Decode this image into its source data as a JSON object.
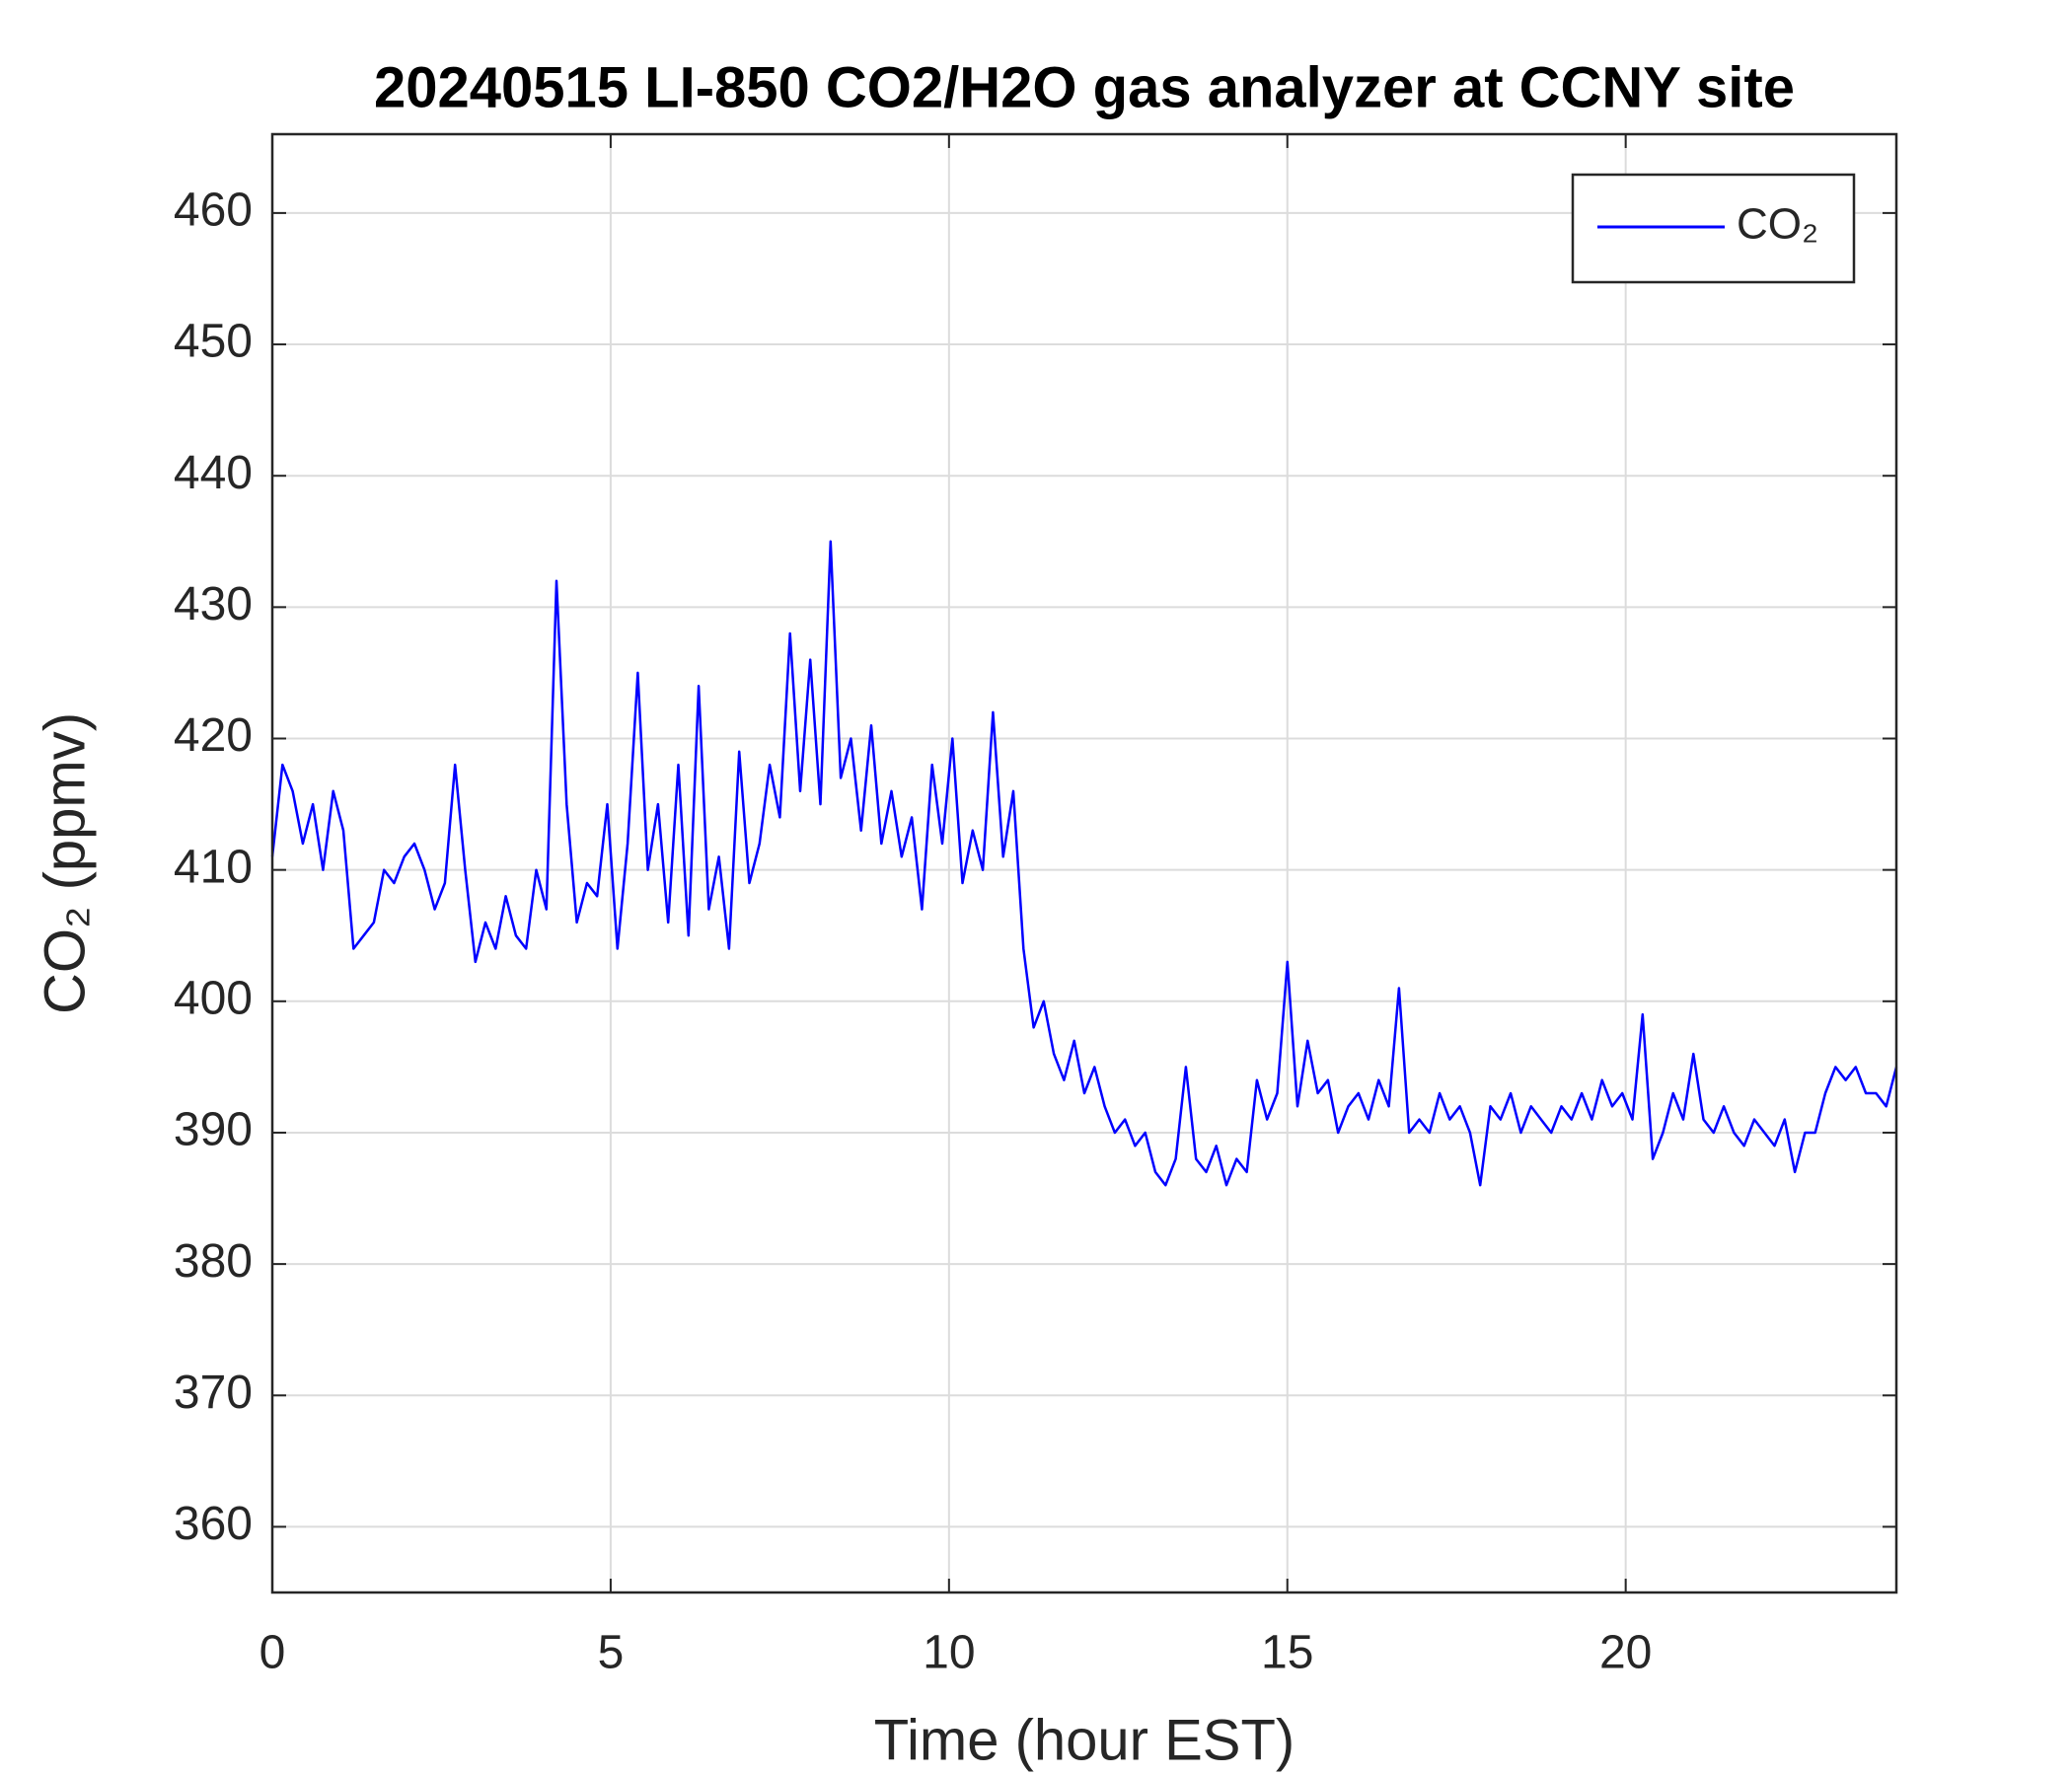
{
  "chart_data": {
    "type": "line",
    "title": "20240515 LI-850 CO2/H2O gas analyzer at CCNY site",
    "xlabel": "Time (hour EST)",
    "ylabel": "CO₂ (ppmv)",
    "x": [
      0,
      0.15,
      0.3,
      0.45,
      0.6,
      0.75,
      0.9,
      1.05,
      1.2,
      1.35,
      1.5,
      1.65,
      1.8,
      1.95,
      2.1,
      2.25,
      2.4,
      2.55,
      2.7,
      2.85,
      3,
      3.15,
      3.3,
      3.45,
      3.6,
      3.75,
      3.9,
      4.05,
      4.2,
      4.35,
      4.5,
      4.65,
      4.8,
      4.95,
      5.1,
      5.25,
      5.4,
      5.55,
      5.7,
      5.85,
      6,
      6.15,
      6.3,
      6.45,
      6.6,
      6.75,
      6.9,
      7.05,
      7.2,
      7.35,
      7.5,
      7.65,
      7.8,
      7.95,
      8.1,
      8.25,
      8.4,
      8.55,
      8.7,
      8.85,
      9,
      9.15,
      9.3,
      9.45,
      9.6,
      9.75,
      9.9,
      10.05,
      10.2,
      10.35,
      10.5,
      10.65,
      10.8,
      10.95,
      11.1,
      11.25,
      11.4,
      11.55,
      11.7,
      11.85,
      12,
      12.15,
      12.3,
      12.45,
      12.6,
      12.75,
      12.9,
      13.05,
      13.2,
      13.35,
      13.5,
      13.65,
      13.8,
      13.95,
      14.1,
      14.25,
      14.4,
      14.55,
      14.7,
      14.85,
      15,
      15.15,
      15.3,
      15.45,
      15.6,
      15.75,
      15.9,
      16.05,
      16.2,
      16.35,
      16.5,
      16.65,
      16.8,
      16.95,
      17.1,
      17.25,
      17.4,
      17.55,
      17.7,
      17.85,
      18,
      18.15,
      18.3,
      18.45,
      18.6,
      18.75,
      18.9,
      19.05,
      19.2,
      19.35,
      19.5,
      19.65,
      19.8,
      19.95,
      20.1,
      20.25,
      20.4,
      20.55,
      20.7,
      20.85,
      21,
      21.15,
      21.3,
      21.45,
      21.6,
      21.75,
      21.9,
      22.05,
      22.2,
      22.35,
      22.5,
      22.65,
      22.8,
      22.95,
      23.1,
      23.25,
      23.4,
      23.55,
      23.7,
      23.85,
      24
    ],
    "series": [
      {
        "name": "CO₂",
        "color": "#0000ff",
        "values": [
          411,
          418,
          416,
          412,
          415,
          410,
          416,
          413,
          404,
          405,
          406,
          410,
          409,
          411,
          412,
          410,
          407,
          409,
          418,
          410,
          403,
          406,
          404,
          408,
          405,
          404,
          410,
          407,
          432,
          415,
          406,
          409,
          408,
          415,
          404,
          412,
          425,
          410,
          415,
          406,
          418,
          405,
          424,
          407,
          411,
          404,
          419,
          409,
          412,
          418,
          414,
          428,
          416,
          426,
          415,
          435,
          417,
          420,
          413,
          421,
          412,
          416,
          411,
          414,
          407,
          418,
          412,
          420,
          409,
          413,
          410,
          422,
          411,
          416,
          404,
          398,
          400,
          396,
          394,
          397,
          393,
          395,
          392,
          390,
          391,
          389,
          390,
          387,
          386,
          388,
          395,
          388,
          387,
          389,
          386,
          388,
          387,
          394,
          391,
          393,
          403,
          392,
          397,
          393,
          394,
          390,
          392,
          393,
          391,
          394,
          392,
          401,
          390,
          391,
          390,
          393,
          391,
          392,
          390,
          386,
          392,
          391,
          393,
          390,
          392,
          391,
          390,
          392,
          391,
          393,
          391,
          394,
          392,
          393,
          391,
          399,
          388,
          390,
          393,
          391,
          396,
          391,
          390,
          392,
          390,
          389,
          391,
          390,
          389,
          391,
          387,
          390,
          390,
          393,
          395,
          394,
          395,
          393,
          393,
          392,
          395
        ]
      }
    ],
    "xlim": [
      0,
      24
    ],
    "xticks": [
      0,
      5,
      10,
      15,
      20
    ],
    "ylim": [
      355,
      466
    ],
    "yticks": [
      360,
      370,
      380,
      390,
      400,
      410,
      420,
      430,
      440,
      450,
      460
    ],
    "grid": true,
    "legend": "upper right"
  }
}
